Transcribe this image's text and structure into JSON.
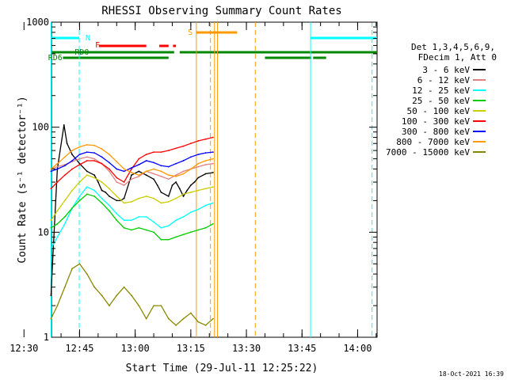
{
  "chart_data": {
    "type": "line",
    "title": "RHESSI Observing Summary Count Rates",
    "xlabel": "Start Time (29-Jul-11 12:25:22)",
    "ylabel": "Count Rate (s⁻¹ detector⁻¹)",
    "yscale": "log",
    "ylim": [
      1,
      1000
    ],
    "xlim_minutes": [
      12.42,
      100.25
    ],
    "x_ticks": [
      {
        "t": 5.0,
        "label": "12:30"
      },
      {
        "t": 20.0,
        "label": "12:45"
      },
      {
        "t": 35.0,
        "label": "13:00"
      },
      {
        "t": 50.0,
        "label": "13:15"
      },
      {
        "t": 65.0,
        "label": "13:30"
      },
      {
        "t": 80.0,
        "label": "13:45"
      },
      {
        "t": 95.0,
        "label": "14:00"
      }
    ],
    "y_ticks": [
      {
        "v": 1,
        "label": "1"
      },
      {
        "v": 10,
        "label": "10"
      },
      {
        "v": 100,
        "label": "100"
      },
      {
        "v": 1000,
        "label": "1000"
      }
    ],
    "legend_header": [
      "Det 1,3,4,5,6,9,",
      "FDecim 1, Att 0"
    ],
    "series": [
      {
        "name": "3 - 6 keV",
        "color": "#000000",
        "points": [
          [
            12.3,
            2.5
          ],
          [
            12.8,
            6
          ],
          [
            14,
            40
          ],
          [
            15.8,
            105
          ],
          [
            16.6,
            70
          ],
          [
            18,
            55
          ],
          [
            20,
            45
          ],
          [
            22,
            38
          ],
          [
            24,
            35
          ],
          [
            25,
            30
          ],
          [
            26,
            25
          ],
          [
            27,
            24
          ],
          [
            28,
            22
          ],
          [
            30,
            20
          ],
          [
            31,
            20
          ],
          [
            32,
            21
          ],
          [
            34,
            35
          ],
          [
            36,
            38
          ],
          [
            38,
            35
          ],
          [
            40,
            32
          ],
          [
            41,
            28
          ],
          [
            42,
            24
          ],
          [
            44,
            22
          ],
          [
            45,
            28
          ],
          [
            46,
            30
          ],
          [
            47,
            26
          ],
          [
            48,
            22
          ],
          [
            49,
            25
          ],
          [
            50,
            28
          ],
          [
            51,
            30
          ],
          [
            52,
            33
          ],
          [
            54,
            36
          ],
          [
            56,
            37
          ]
        ]
      },
      {
        "name": "6 - 12 keV",
        "color": "#e08080",
        "points": [
          [
            12.3,
            40
          ],
          [
            14,
            42
          ],
          [
            16,
            44
          ],
          [
            18,
            47
          ],
          [
            20,
            50
          ],
          [
            22,
            52
          ],
          [
            24,
            50
          ],
          [
            26,
            45
          ],
          [
            28,
            38
          ],
          [
            30,
            30
          ],
          [
            32,
            28
          ],
          [
            34,
            32
          ],
          [
            36,
            34
          ],
          [
            38,
            38
          ],
          [
            40,
            36
          ],
          [
            42,
            34
          ],
          [
            44,
            32
          ],
          [
            46,
            35
          ],
          [
            48,
            38
          ],
          [
            50,
            40
          ],
          [
            52,
            42
          ],
          [
            54,
            44
          ],
          [
            56,
            45
          ]
        ]
      },
      {
        "name": "12 - 25 keV",
        "color": "#00ffff",
        "points": [
          [
            12.3,
            7
          ],
          [
            14,
            9
          ],
          [
            16,
            12
          ],
          [
            18,
            17
          ],
          [
            20,
            22
          ],
          [
            22,
            27
          ],
          [
            24,
            25
          ],
          [
            26,
            21
          ],
          [
            28,
            18
          ],
          [
            30,
            15
          ],
          [
            32,
            13
          ],
          [
            34,
            13
          ],
          [
            36,
            14
          ],
          [
            38,
            14
          ],
          [
            40,
            12.5
          ],
          [
            42,
            11
          ],
          [
            44,
            11.5
          ],
          [
            46,
            13
          ],
          [
            48,
            14
          ],
          [
            50,
            15.5
          ],
          [
            52,
            16.5
          ],
          [
            54,
            18
          ],
          [
            56,
            19
          ]
        ]
      },
      {
        "name": "25 - 50 keV",
        "color": "#00cc00",
        "points": [
          [
            12.3,
            11
          ],
          [
            14,
            12
          ],
          [
            16,
            14
          ],
          [
            18,
            17
          ],
          [
            20,
            20
          ],
          [
            22,
            23
          ],
          [
            24,
            22
          ],
          [
            26,
            19
          ],
          [
            28,
            16
          ],
          [
            30,
            13
          ],
          [
            32,
            11
          ],
          [
            34,
            10.5
          ],
          [
            36,
            11
          ],
          [
            38,
            10.5
          ],
          [
            40,
            10
          ],
          [
            42,
            8.5
          ],
          [
            44,
            8.5
          ],
          [
            46,
            9
          ],
          [
            48,
            9.5
          ],
          [
            50,
            10
          ],
          [
            52,
            10.5
          ],
          [
            54,
            11
          ],
          [
            56,
            12
          ]
        ]
      },
      {
        "name": "50 - 100 keV",
        "color": "#cccc00",
        "points": [
          [
            12.3,
            13
          ],
          [
            14,
            16
          ],
          [
            16,
            20
          ],
          [
            18,
            25
          ],
          [
            20,
            30
          ],
          [
            22,
            35
          ],
          [
            24,
            33
          ],
          [
            26,
            30
          ],
          [
            28,
            26
          ],
          [
            30,
            22
          ],
          [
            32,
            19
          ],
          [
            34,
            19.5
          ],
          [
            36,
            21
          ],
          [
            38,
            22
          ],
          [
            40,
            21
          ],
          [
            42,
            19
          ],
          [
            44,
            19.5
          ],
          [
            46,
            21
          ],
          [
            48,
            23
          ],
          [
            50,
            24
          ],
          [
            52,
            25
          ],
          [
            54,
            26
          ],
          [
            56,
            27
          ]
        ]
      },
      {
        "name": "100 - 300 keV",
        "color": "#ff0000",
        "points": [
          [
            12.3,
            26
          ],
          [
            14,
            30
          ],
          [
            16,
            35
          ],
          [
            18,
            40
          ],
          [
            20,
            44
          ],
          [
            22,
            48
          ],
          [
            24,
            48
          ],
          [
            26,
            45
          ],
          [
            28,
            40
          ],
          [
            30,
            33
          ],
          [
            32,
            30
          ],
          [
            34,
            40
          ],
          [
            36,
            50
          ],
          [
            38,
            55
          ],
          [
            40,
            58
          ],
          [
            42,
            58
          ],
          [
            44,
            60
          ],
          [
            46,
            63
          ],
          [
            48,
            66
          ],
          [
            50,
            70
          ],
          [
            52,
            74
          ],
          [
            54,
            77
          ],
          [
            56,
            80
          ]
        ]
      },
      {
        "name": "300 - 800 keV",
        "color": "#0000ff",
        "points": [
          [
            12.3,
            38
          ],
          [
            14,
            40
          ],
          [
            16,
            43
          ],
          [
            18,
            48
          ],
          [
            20,
            55
          ],
          [
            22,
            58
          ],
          [
            24,
            57
          ],
          [
            26,
            52
          ],
          [
            28,
            46
          ],
          [
            30,
            40
          ],
          [
            32,
            38
          ],
          [
            34,
            41
          ],
          [
            36,
            44
          ],
          [
            38,
            48
          ],
          [
            40,
            46
          ],
          [
            42,
            43
          ],
          [
            44,
            42
          ],
          [
            46,
            45
          ],
          [
            48,
            48
          ],
          [
            50,
            52
          ],
          [
            52,
            55
          ],
          [
            54,
            57
          ],
          [
            56,
            58
          ]
        ]
      },
      {
        "name": "800 - 7000 keV",
        "color": "#ff9900",
        "points": [
          [
            12.3,
            40
          ],
          [
            14,
            45
          ],
          [
            16,
            52
          ],
          [
            18,
            60
          ],
          [
            20,
            65
          ],
          [
            22,
            68
          ],
          [
            24,
            67
          ],
          [
            26,
            62
          ],
          [
            28,
            55
          ],
          [
            30,
            47
          ],
          [
            32,
            40
          ],
          [
            34,
            37
          ],
          [
            36,
            35
          ],
          [
            38,
            38
          ],
          [
            40,
            40
          ],
          [
            42,
            38
          ],
          [
            44,
            35
          ],
          [
            46,
            34
          ],
          [
            48,
            36
          ],
          [
            50,
            40
          ],
          [
            52,
            45
          ],
          [
            54,
            48
          ],
          [
            56,
            50
          ]
        ]
      },
      {
        "name": "7000 - 15000 keV",
        "color": "#888800",
        "points": [
          [
            12.3,
            1.5
          ],
          [
            14,
            2
          ],
          [
            16,
            3
          ],
          [
            18,
            4.5
          ],
          [
            20,
            5
          ],
          [
            22,
            4
          ],
          [
            24,
            3
          ],
          [
            26,
            2.5
          ],
          [
            28,
            2
          ],
          [
            30,
            2.5
          ],
          [
            32,
            3
          ],
          [
            34,
            2.5
          ],
          [
            36,
            2
          ],
          [
            38,
            1.5
          ],
          [
            40,
            2
          ],
          [
            42,
            2
          ],
          [
            44,
            1.5
          ],
          [
            46,
            1.3
          ],
          [
            48,
            1.5
          ],
          [
            50,
            1.7
          ],
          [
            52,
            1.4
          ],
          [
            54,
            1.3
          ],
          [
            56,
            1.5
          ]
        ]
      }
    ],
    "state_bars": [
      {
        "label": "N",
        "color": "#00ffff"
      },
      {
        "label": "F",
        "color": "#ff0000"
      },
      {
        "label": "S",
        "color": "#ff9900"
      },
      {
        "label": "RD0",
        "color": "#008800"
      },
      {
        "label": "RD6",
        "color": "#008800"
      }
    ],
    "grid": false,
    "legend_position": "right",
    "colors": {
      "background": "#ffffff",
      "axes": "#000000"
    }
  },
  "footer_timestamp": "18-Oct-2021 16:39"
}
